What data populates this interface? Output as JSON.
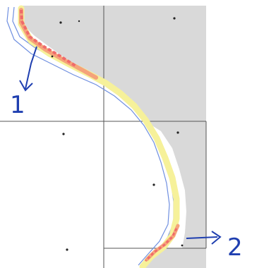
{
  "annotations": [
    {
      "id": "marker-1",
      "text": "1"
    },
    {
      "id": "marker-2",
      "text": "2"
    }
  ],
  "colors": {
    "land": "#d9d9d9",
    "grid_line": "#555555",
    "coast_outline": "#6f8fe0",
    "band_high": "#f06a6a",
    "band_mid": "#f5a37a",
    "band_low": "#f6f19a",
    "annotation": "#1f3fb0",
    "point": "#222222"
  },
  "legend": null
}
